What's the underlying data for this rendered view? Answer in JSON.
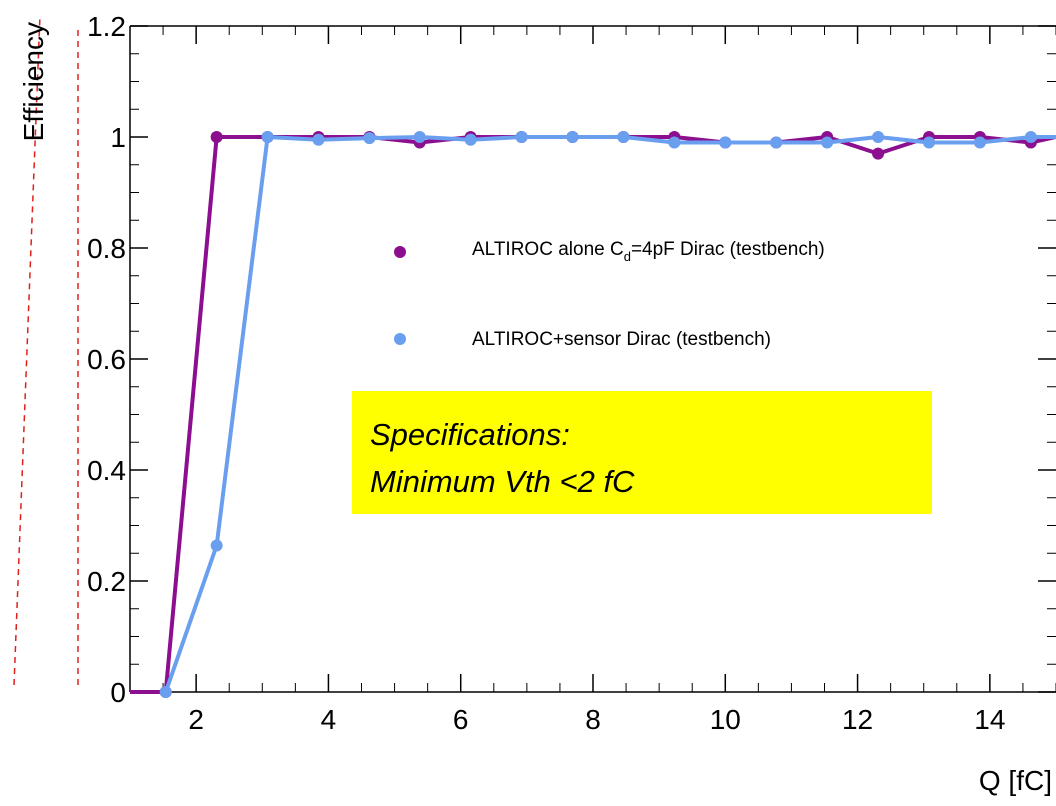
{
  "chart_data": {
    "type": "line",
    "xlabel": "Q [fC]",
    "ylabel": "Efficiency",
    "xlim": [
      1,
      15
    ],
    "ylim": [
      0,
      1.2
    ],
    "xticks": [
      2,
      4,
      6,
      8,
      10,
      12,
      14
    ],
    "yticks": [
      0,
      0.2,
      0.4,
      0.6,
      0.8,
      1,
      1.2
    ],
    "ytick_labels": [
      "0",
      "0.2",
      "0.4",
      "0.6",
      "0.8",
      "1",
      "1.2"
    ],
    "legend_position": "center-right",
    "grid": false,
    "series": [
      {
        "name_main": "ALTIROC alone C",
        "name_sub": "d",
        "name_rest": "=4pF Dirac (testbench)",
        "color": "#8b0f8f",
        "x": [
          1.0,
          1.54,
          2.31,
          3.08,
          3.85,
          4.62,
          5.38,
          6.15,
          6.92,
          7.69,
          8.46,
          9.23,
          10.0,
          10.77,
          11.54,
          12.31,
          13.08,
          13.85,
          14.62,
          15.0
        ],
        "y": [
          0,
          0,
          1.0,
          1.0,
          1.0,
          1.0,
          0.99,
          1.0,
          1.0,
          1.0,
          1.0,
          1.0,
          0.99,
          0.99,
          1.0,
          0.97,
          1.0,
          1.0,
          0.99,
          1.0
        ]
      },
      {
        "name": "ALTIROC+sensor Dirac (testbench)",
        "color": "#6a9ff0",
        "x": [
          1.54,
          2.31,
          3.08,
          3.85,
          4.62,
          5.38,
          6.15,
          6.92,
          7.69,
          8.46,
          9.23,
          10.0,
          10.77,
          11.54,
          12.31,
          13.08,
          13.85,
          14.62,
          15.0
        ],
        "y": [
          0,
          0.264,
          1.0,
          0.995,
          0.998,
          1.0,
          0.995,
          1.0,
          1.0,
          1.0,
          0.99,
          0.99,
          0.99,
          0.99,
          1.0,
          0.99,
          0.99,
          1.0,
          1.0
        ]
      }
    ],
    "annotation": {
      "line1": "Specifications:",
      "line2": "Minimum Vth  <2 fC",
      "background": "#ffff00"
    }
  }
}
